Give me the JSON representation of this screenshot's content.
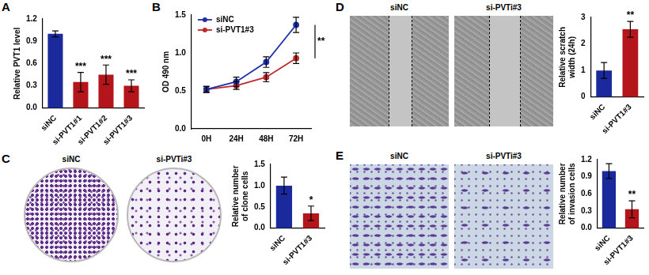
{
  "chart_data": [
    {
      "panel": "A",
      "type": "bar",
      "categories": [
        "siNC",
        "si-PVT1#1",
        "si-PVT1#2",
        "si-PVT1#3"
      ],
      "values": [
        1.0,
        0.35,
        0.45,
        0.3
      ],
      "errors": [
        0.04,
        0.13,
        0.13,
        0.08
      ],
      "significance": [
        null,
        "***",
        "***",
        "***"
      ],
      "colors": [
        "#1a2a9c",
        "#b3151a",
        "#b3151a",
        "#b3151a"
      ],
      "y_label": "Relative PVT1 level",
      "ylim": [
        0,
        1.2
      ],
      "yticks": [
        {
          "value": 0,
          "label": "0.0"
        },
        0.3,
        0.6,
        0.9,
        1.2
      ],
      "grid": false
    },
    {
      "panel": "B",
      "type": "line",
      "categories": [
        "0H",
        "24H",
        "48H",
        "72H"
      ],
      "series": [
        {
          "name": "siNC",
          "color": "#1f2fa8",
          "marker": "circle",
          "values": [
            0.52,
            0.62,
            0.88,
            1.37
          ],
          "errors": [
            0.04,
            0.06,
            0.07,
            0.1
          ]
        },
        {
          "name": "si-PVT1#3",
          "color": "#c0282a",
          "marker": "circle",
          "values": [
            0.52,
            0.57,
            0.68,
            0.93
          ],
          "errors": [
            0.04,
            0.05,
            0.06,
            0.07
          ]
        }
      ],
      "significance": "**",
      "y_label": "OD 490 nm",
      "ylim": [
        0,
        1.5
      ],
      "yticks": [
        {
          "value": 0,
          "label": "0.0"
        },
        0.5,
        {
          "value": 1,
          "label": "1.0"
        },
        1.5
      ],
      "legend": "top-left",
      "grid": false
    },
    {
      "panel": "C",
      "type": "bar",
      "image_labels": [
        "siNC",
        "si-PVTi#3"
      ],
      "categories": [
        "siNC",
        "si-PVT1#3"
      ],
      "values": [
        1.0,
        0.35
      ],
      "errors": [
        0.2,
        0.17
      ],
      "significance": [
        null,
        "*"
      ],
      "colors": [
        "#1a2a9c",
        "#b3151a"
      ],
      "y_label": "Relative number of clone cells",
      "ylim": [
        0,
        1.5
      ],
      "yticks": [
        {
          "value": 0,
          "label": "0.0"
        },
        0.5,
        {
          "value": 1,
          "label": "1.0"
        },
        1.5
      ],
      "grid": false
    },
    {
      "panel": "D",
      "type": "bar",
      "image_labels": [
        "siNC",
        "si-PVTi#3"
      ],
      "categories": [
        "siNC",
        "si-PVT1#3"
      ],
      "values": [
        1.0,
        2.55
      ],
      "errors": [
        0.3,
        0.3
      ],
      "significance": [
        null,
        "**"
      ],
      "colors": [
        "#1a2a9c",
        "#b3151a"
      ],
      "y_label": "Relative scratch width (24h)",
      "ylim": [
        0,
        3
      ],
      "yticks": [
        0,
        1,
        2,
        3
      ],
      "grid": false
    },
    {
      "panel": "E",
      "type": "bar",
      "image_labels": [
        "siNC",
        "si-PVTi#3"
      ],
      "categories": [
        "siNC",
        "si-PVT1#3"
      ],
      "values": [
        1.0,
        0.33
      ],
      "errors": [
        0.13,
        0.15
      ],
      "significance": [
        null,
        "**"
      ],
      "colors": [
        "#1a2a9c",
        "#b3151a"
      ],
      "y_label": "Relative number of invasion cells",
      "ylim": [
        0,
        1.2
      ],
      "yticks": [
        {
          "value": 0,
          "label": "0.0"
        },
        0.3,
        0.6,
        0.9,
        1.2
      ],
      "grid": false
    }
  ]
}
